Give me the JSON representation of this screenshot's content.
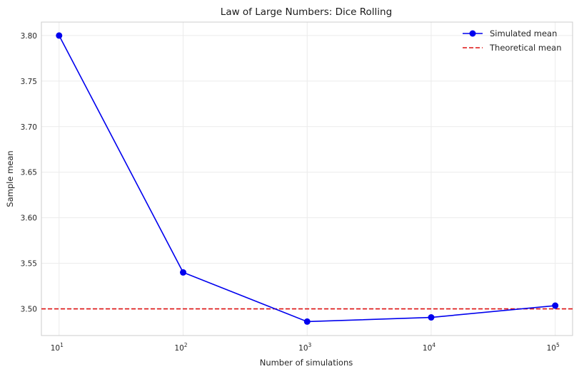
{
  "chart_data": {
    "type": "line",
    "title": "Law of Large Numbers: Dice Rolling",
    "xlabel": "Number of simulations",
    "ylabel": "Sample mean",
    "xscale": "log",
    "x": [
      10,
      100,
      1000,
      10000,
      100000
    ],
    "xticks": [
      {
        "value": 10,
        "base": "10",
        "exp": "1"
      },
      {
        "value": 100,
        "base": "10",
        "exp": "2"
      },
      {
        "value": 1000,
        "base": "10",
        "exp": "3"
      },
      {
        "value": 10000,
        "base": "10",
        "exp": "4"
      },
      {
        "value": 100000,
        "base": "10",
        "exp": "5"
      }
    ],
    "yticks": [
      "3.50",
      "3.55",
      "3.60",
      "3.65",
      "3.70",
      "3.75",
      "3.80"
    ],
    "xlim": [
      7.2,
      138000
    ],
    "ylim": [
      3.4707,
      3.8148
    ],
    "grid": true,
    "legend_position": "top-right",
    "series": [
      {
        "name": "Simulated mean",
        "values": [
          3.8,
          3.54,
          3.486,
          3.4906,
          3.5035
        ],
        "color": "#0000ee",
        "marker": "circle",
        "style": "solid"
      },
      {
        "name": "Theoretical mean",
        "constant": 3.5,
        "color": "#dd1111",
        "style": "dashed"
      }
    ]
  }
}
